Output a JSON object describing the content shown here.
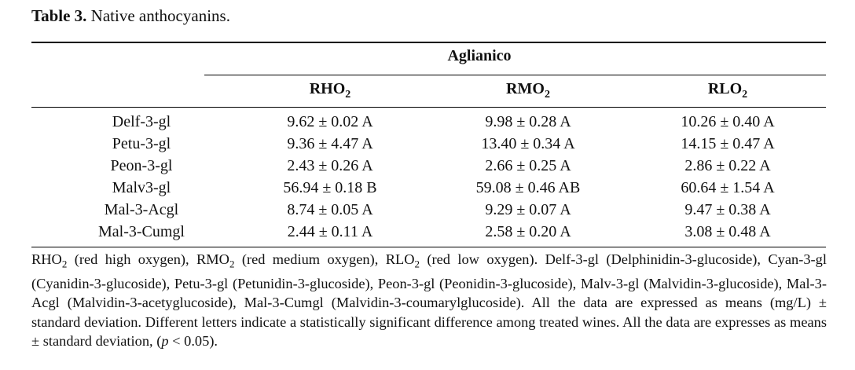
{
  "caption": {
    "label": "Table 3.",
    "text": "Native anthocyanins."
  },
  "group_header": "Aglianico",
  "columns": [
    {
      "base": "RHO",
      "sub": "2"
    },
    {
      "base": "RMO",
      "sub": "2"
    },
    {
      "base": "RLO",
      "sub": "2"
    }
  ],
  "rows": [
    {
      "name": "Delf-3-gl",
      "values": [
        "9.62 ± 0.02 A",
        "9.98 ± 0.28 A",
        "10.26 ± 0.40 A"
      ]
    },
    {
      "name": "Petu-3-gl",
      "values": [
        "9.36 ± 4.47 A",
        "13.40 ± 0.34 A",
        "14.15 ± 0.47 A"
      ]
    },
    {
      "name": "Peon-3-gl",
      "values": [
        "2.43 ± 0.26 A",
        "2.66 ± 0.25 A",
        "2.86 ± 0.22 A"
      ]
    },
    {
      "name": "Malv3-gl",
      "values": [
        "56.94 ± 0.18 B",
        "59.08 ± 0.46 AB",
        "60.64 ± 1.54 A"
      ]
    },
    {
      "name": "Mal-3-Acgl",
      "values": [
        "8.74 ± 0.05 A",
        "9.29 ± 0.07 A",
        "9.47 ± 0.38 A"
      ]
    },
    {
      "name": "Mal-3-Cumgl",
      "values": [
        "2.44 ± 0.11 A",
        "2.58 ± 0.20 A",
        "3.08 ± 0.48 A"
      ]
    }
  ],
  "footnote": {
    "abbr1_base": "RHO",
    "abbr1_sub": "2",
    "abbr1_desc": " (red high oxygen), ",
    "abbr2_base": "RMO",
    "abbr2_sub": "2",
    "abbr2_desc": " (red medium oxygen), ",
    "abbr3_base": "RLO",
    "abbr3_sub": "2",
    "abbr3_desc": " (red low oxygen). ",
    "rest": " Delf-3-gl (Delphinidin-3-glucoside), Cyan-3-gl (Cyanidin-3-glucoside), Petu-3-gl (Petunidin-3-glucoside), Peon-3-gl (Peonidin-3-glucoside), Malv-3-gl (Malvidin-3-glucoside), Mal-3-Acgl (Malvidin-3-acetyglucoside), Mal-3-Cumgl (Malvidin-3-coumarylglucoside). All the data are expressed as means (mg/L) ± standard deviation. Different letters indicate a statistically significant difference among treated wines. All the data are expresses as means ± standard deviation, (",
    "p_symbol": "p",
    "p_tail": " < 0.05)."
  }
}
